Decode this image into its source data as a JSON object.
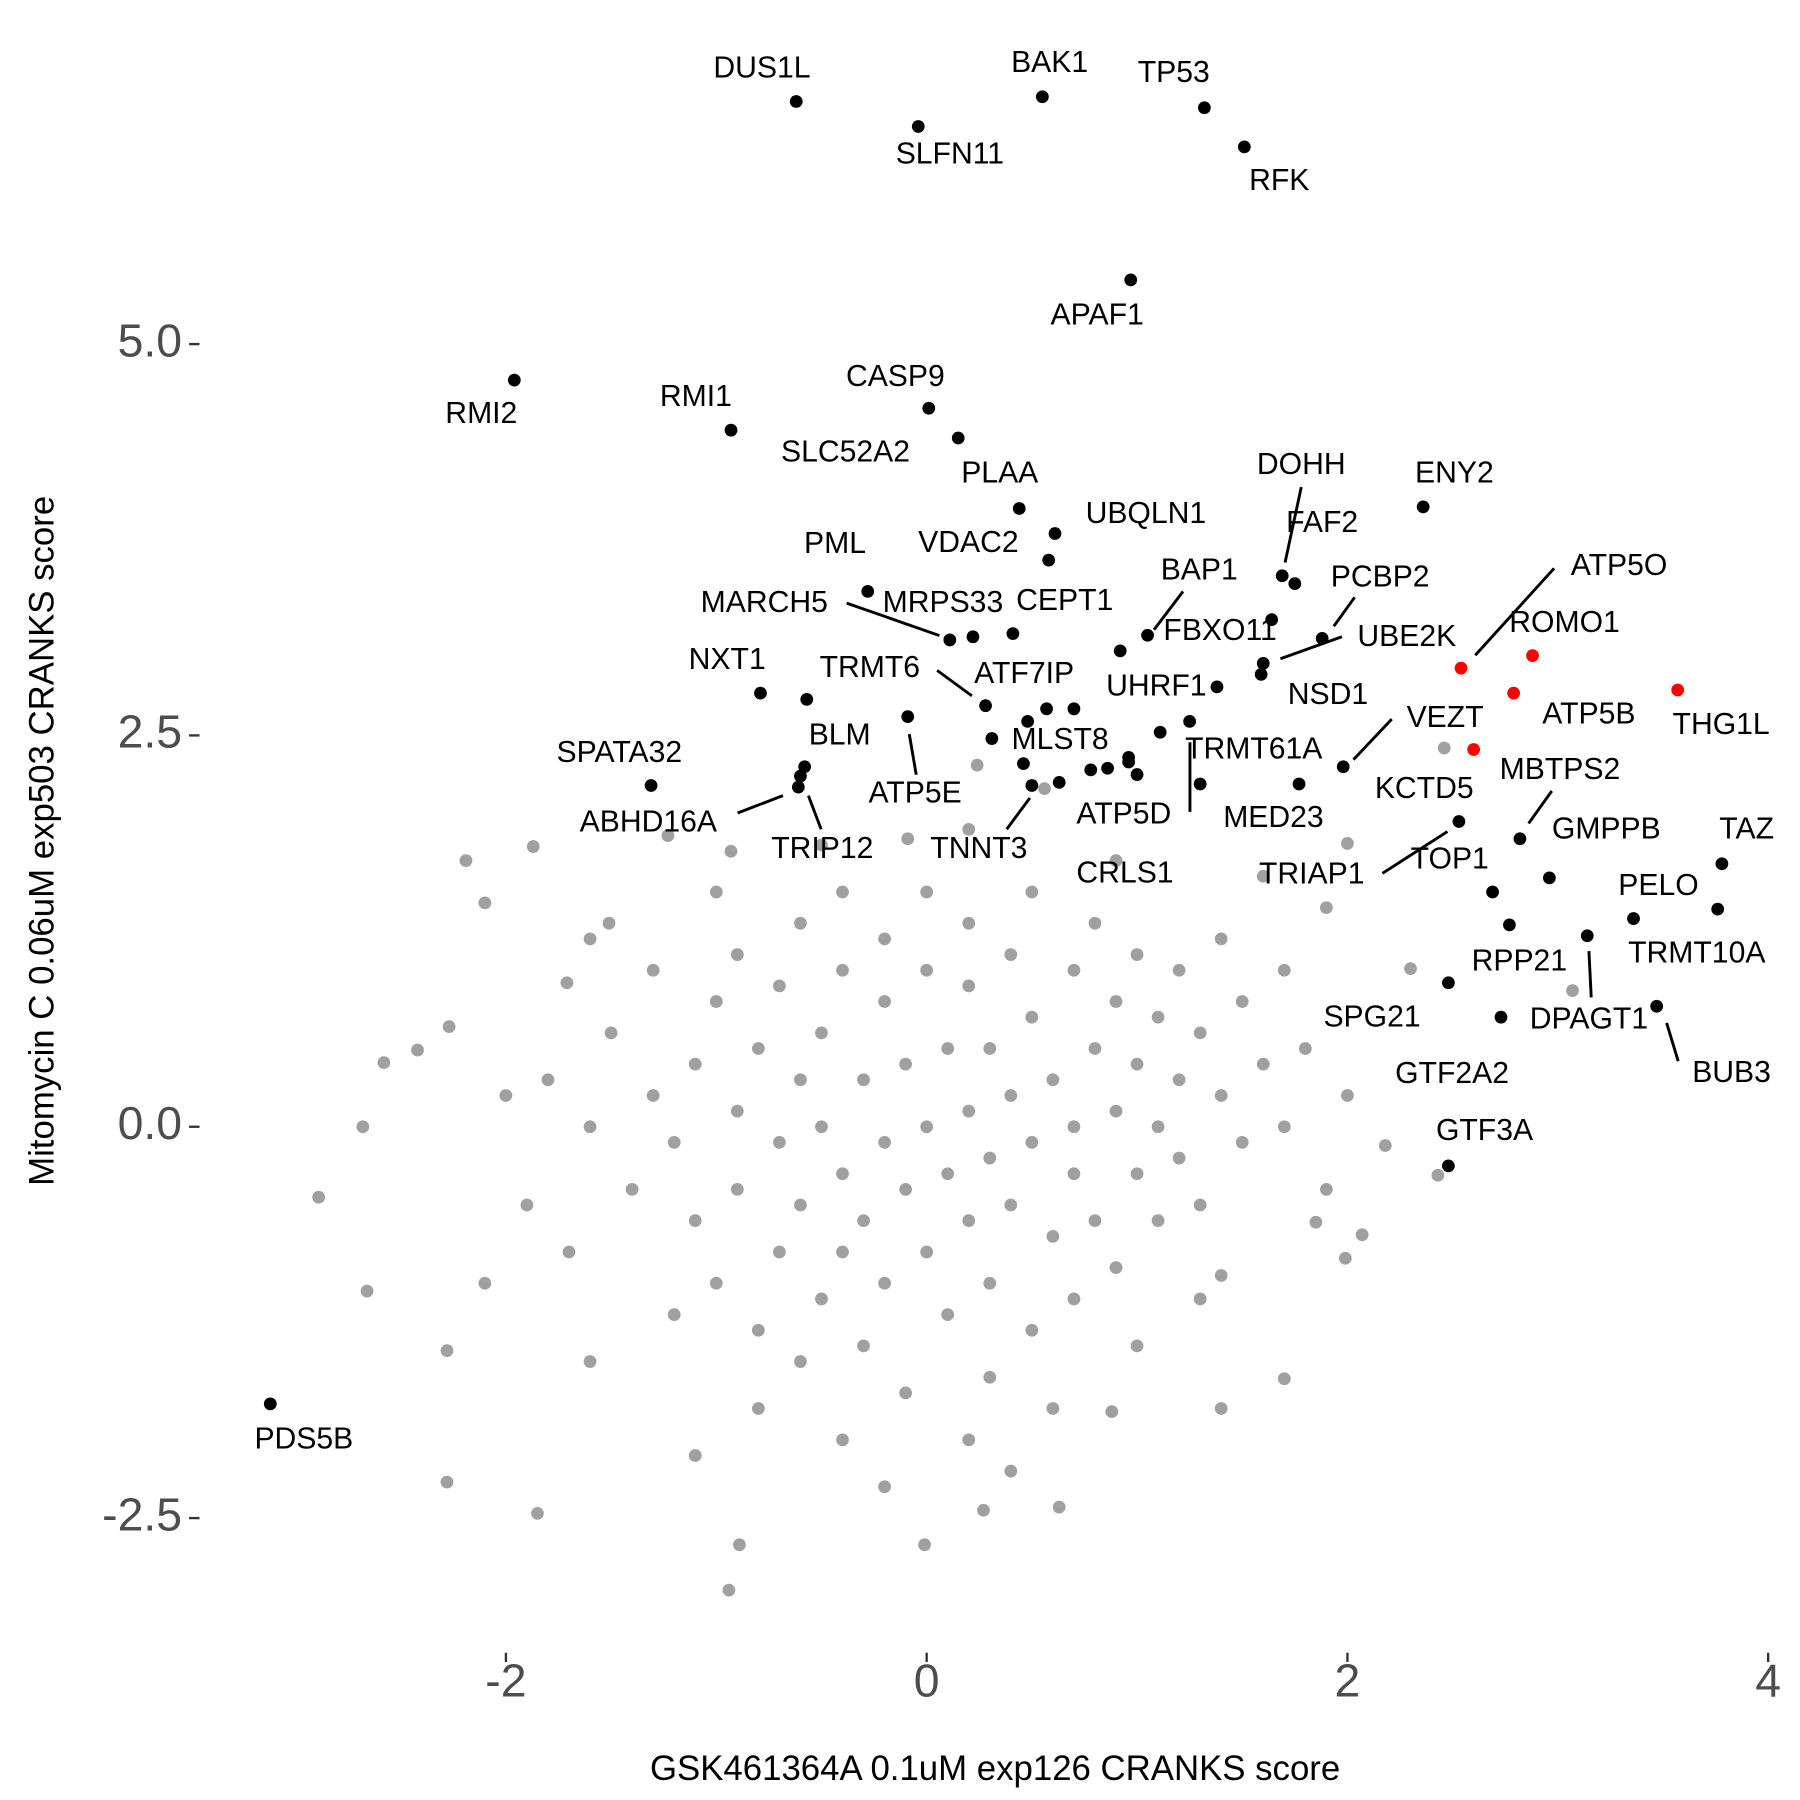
{
  "chart_data": {
    "type": "scatter",
    "x_label": "GSK461364A 0.1uM exp126 CRANKS score",
    "y_label": "Mitomycin C 0.06uM exp503 CRANKS score",
    "xlim": [
      -3.44,
      4.03
    ],
    "ylim": [
      -3.36,
      7.05
    ],
    "xticks": [
      -2,
      0,
      2,
      4
    ],
    "yticks": [
      {
        "value": 5,
        "label": "5.0"
      },
      2.5,
      {
        "value": 0,
        "label": "0.0"
      },
      -2.5
    ],
    "series": [
      {
        "color": "#a0a0a0",
        "x": [
          -1.2,
          -1.1,
          -1.1,
          -1.0,
          -1.0,
          -0.9,
          -0.9,
          -0.9,
          -0.8,
          -0.8,
          -0.7,
          -0.7,
          -0.7,
          -0.6,
          -0.6,
          -0.6,
          -0.6,
          -0.5,
          -0.5,
          -0.5,
          -0.4,
          -0.4,
          -0.4,
          -0.4,
          -0.3,
          -0.3,
          -0.3,
          -0.2,
          -0.2,
          -0.2,
          -0.2,
          -0.1,
          -0.1,
          -0.1,
          0.0,
          0.0,
          0.0,
          0.0,
          0.1,
          0.1,
          0.1,
          0.2,
          0.2,
          0.2,
          0.2,
          0.3,
          0.3,
          0.3,
          0.3,
          0.4,
          0.4,
          0.4,
          0.5,
          0.5,
          0.5,
          0.5,
          0.6,
          0.6,
          0.7,
          0.7,
          0.7,
          0.7,
          0.8,
          0.8,
          0.8,
          0.9,
          0.9,
          0.9,
          1.0,
          1.0,
          1.0,
          1.1,
          1.1,
          1.1,
          1.2,
          1.2,
          1.2,
          1.3,
          1.3,
          1.4,
          1.4,
          1.5,
          1.5,
          1.6,
          1.7,
          1.7,
          1.8,
          -1.3,
          -1.4,
          -1.5,
          -1.6,
          -1.7,
          -1.8,
          -1.2,
          -1.3,
          -0.8,
          -0.4,
          0.2,
          0.6,
          1.0,
          1.3,
          1.9,
          2.0,
          1.9,
          1.6,
          0.9,
          0.2,
          -0.5,
          -1.0,
          -1.6,
          -2.0,
          -1.9,
          -2.1,
          -1.6,
          -1.1,
          -0.2,
          0.4,
          1.4,
          -2.68,
          -2.89,
          -2.66,
          -2.19,
          -2.1,
          -1.87,
          -2.28,
          -2.28,
          -1.85,
          -0.94,
          -0.89,
          -0.01,
          0.63,
          1.7,
          2.07,
          2.43,
          2.46,
          2.3,
          3.07,
          2.0,
          2.18,
          -2.42,
          -2.27,
          -2.58,
          -1.71,
          -1.51,
          -1.23,
          -0.93,
          -0.09,
          0.24,
          0.56,
          0.88,
          0.27,
          1.4,
          1.85,
          1.99
        ],
        "y": [
          -0.1,
          0.4,
          -0.6,
          0.8,
          -1.0,
          0.1,
          -0.4,
          1.1,
          -1.3,
          0.5,
          -0.1,
          -0.8,
          0.9,
          1.3,
          0.3,
          -0.5,
          -1.5,
          -1.1,
          0.0,
          0.6,
          1.0,
          -0.3,
          -0.8,
          1.5,
          0.3,
          -1.4,
          -0.6,
          0.8,
          -0.1,
          1.2,
          -1.0,
          0.4,
          -0.4,
          -1.7,
          0.0,
          1.0,
          -0.8,
          1.5,
          0.5,
          -0.3,
          -1.2,
          0.9,
          0.1,
          -0.6,
          1.3,
          -0.2,
          0.5,
          -1.0,
          -1.6,
          0.2,
          1.1,
          -0.5,
          0.7,
          -0.1,
          -1.3,
          1.5,
          0.3,
          -0.7,
          1.0,
          -0.3,
          0.0,
          -1.1,
          0.5,
          1.3,
          -0.6,
          0.1,
          0.8,
          -0.9,
          -0.3,
          0.4,
          1.1,
          0.0,
          0.7,
          -0.6,
          0.3,
          -0.2,
          1.0,
          0.6,
          -0.5,
          0.2,
          1.2,
          -0.1,
          0.8,
          0.4,
          0.0,
          1.0,
          0.5,
          0.2,
          -0.4,
          0.6,
          0.0,
          -0.8,
          0.3,
          -1.2,
          1.0,
          -1.8,
          -2.0,
          -2.0,
          -1.8,
          -1.4,
          -1.1,
          -0.4,
          0.2,
          1.4,
          1.6,
          1.7,
          1.9,
          1.8,
          1.5,
          1.2,
          0.2,
          -0.5,
          -1.0,
          -1.5,
          -2.1,
          -2.3,
          -2.2,
          -1.8,
          0.0,
          -0.45,
          -1.05,
          1.7,
          1.43,
          1.79,
          -1.43,
          -2.27,
          -2.47,
          -2.96,
          -2.67,
          -2.67,
          -2.43,
          -1.61,
          -0.69,
          -0.31,
          2.42,
          1.01,
          0.87,
          1.81,
          -0.12,
          0.49,
          0.64,
          0.41,
          0.92,
          1.3,
          1.86,
          1.76,
          1.84,
          2.31,
          2.16,
          -1.82,
          -2.45,
          -0.95,
          -0.61,
          -0.84
        ]
      },
      {
        "color": "#000000",
        "x": [
          -0.62,
          0.55,
          1.32,
          -0.04,
          1.51,
          0.97,
          -1.96,
          -0.93,
          0.01,
          0.15,
          0.44,
          0.61,
          0.58,
          2.36,
          1.69,
          1.75,
          -0.28,
          0.11,
          0.22,
          0.41,
          1.05,
          1.64,
          1.88,
          1.6,
          1.59,
          1.38,
          -0.79,
          0.28,
          0.57,
          -0.09,
          -1.31,
          -0.58,
          -0.61,
          -0.6,
          0.31,
          0.5,
          1.11,
          0.96,
          1.3,
          1.25,
          1.98,
          1.77,
          2.53,
          2.69,
          2.82,
          2.96,
          3.78,
          3.76,
          3.36,
          2.77,
          3.14,
          3.47,
          2.48,
          2.73,
          2.48,
          -3.12,
          0.92,
          0.96,
          0.78,
          0.86,
          0.63,
          0.46,
          1.0,
          -0.57,
          0.48,
          0.7
        ],
        "y": [
          6.55,
          6.58,
          6.51,
          6.39,
          6.26,
          5.41,
          4.77,
          4.45,
          4.59,
          4.4,
          3.95,
          3.79,
          3.62,
          3.96,
          3.52,
          3.47,
          3.42,
          3.11,
          3.13,
          3.15,
          3.14,
          3.24,
          3.12,
          2.96,
          2.89,
          2.81,
          2.77,
          2.69,
          2.67,
          2.62,
          2.18,
          2.3,
          2.17,
          2.24,
          2.48,
          2.18,
          2.52,
          2.36,
          2.19,
          2.59,
          2.3,
          2.19,
          1.95,
          1.5,
          1.84,
          1.59,
          1.68,
          1.39,
          1.33,
          1.29,
          1.22,
          0.77,
          0.92,
          0.7,
          -0.25,
          -1.77,
          3.04,
          2.33,
          2.28,
          2.29,
          2.2,
          2.32,
          2.25,
          2.73,
          2.59,
          2.67
        ],
        "labels": [
          "DUS1L",
          "BAK1",
          "TP53",
          "SLFN11",
          "RFK",
          "APAF1",
          "RMI2",
          "RMI1",
          "CASP9",
          "SLC52A2",
          "PLAA",
          "UBQLN1",
          "VDAC2",
          "ENY2",
          "DOHH",
          "FAF2",
          "PML",
          "MARCH5",
          "MRPS33",
          "CEPT1",
          "BAP1",
          "FBXO11",
          "PCBP2",
          "UBE2K",
          "NSD1",
          "UHRF1",
          "NXT1",
          "TRMT6",
          "ATF7IP",
          "ATP5E",
          "SPATA32",
          "BLM",
          "ABHD16A",
          "TRIP12",
          "MLST8",
          "TNNT3",
          "TRMT61A",
          "ATP5D",
          "MED23",
          "CRLS1",
          "VEZT",
          "KCTD5",
          "TRIAP1",
          "TOP1",
          "MBTPS2",
          "GMPPB",
          "TAZ",
          "PELO",
          "TRMT10A",
          "RPP21",
          "DPAGT1",
          "BUB3",
          "SPG21",
          "GTF2A2",
          "GTF3A",
          "PDS5B",
          null,
          null,
          null,
          null,
          null,
          null,
          null,
          null,
          null,
          null
        ]
      },
      {
        "color": "#ff0000",
        "x": [
          2.54,
          2.88,
          2.79,
          3.57,
          2.6
        ],
        "y": [
          2.93,
          3.01,
          2.77,
          2.79,
          2.41
        ],
        "labels": [
          "ATP5O",
          "ROMO1",
          "ATP5B",
          "THG1L",
          null
        ]
      }
    ]
  }
}
